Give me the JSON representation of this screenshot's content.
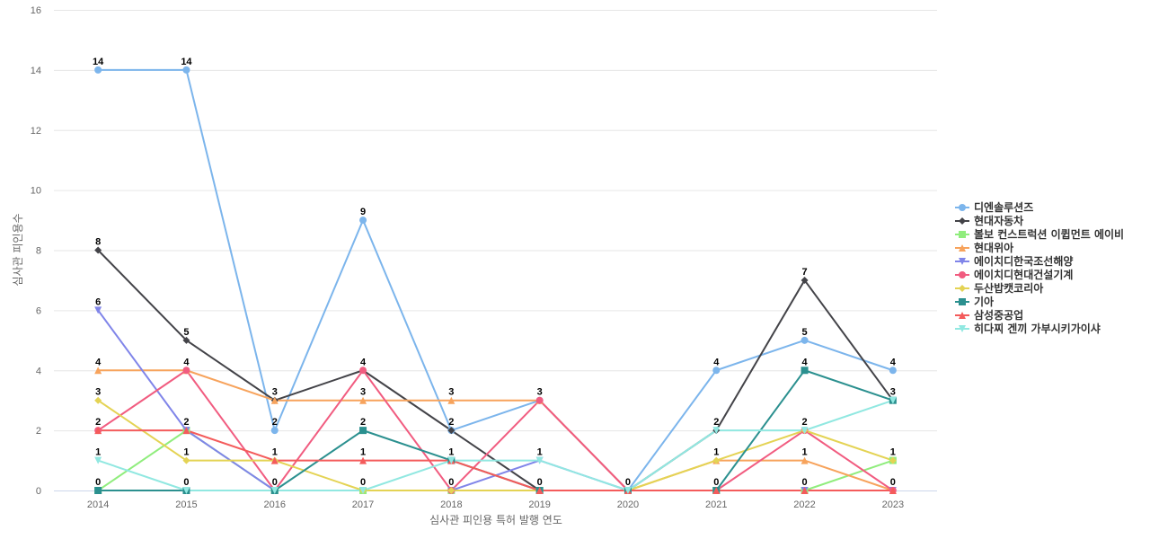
{
  "chart_data": {
    "type": "line",
    "title": "",
    "xlabel": "심사관 피인용 특허 발행 연도",
    "ylabel": "심사관 피인용수",
    "ylim": [
      0,
      16
    ],
    "yticks": [
      0,
      2,
      4,
      6,
      8,
      10,
      12,
      14,
      16
    ],
    "categories": [
      "2014",
      "2015",
      "2016",
      "2017",
      "2018",
      "2019",
      "2020",
      "2021",
      "2022",
      "2023"
    ],
    "legend_position": "right",
    "series": [
      {
        "name": "디엔솔루션즈",
        "color": "#7cb5ec",
        "marker": "circle",
        "values": [
          14,
          14,
          2,
          9,
          2,
          3,
          0,
          4,
          5,
          4
        ]
      },
      {
        "name": "현대자동차",
        "color": "#434348",
        "marker": "diamond",
        "values": [
          8,
          5,
          3,
          4,
          2,
          0,
          0,
          2,
          7,
          3
        ]
      },
      {
        "name": "볼보 컨스트럭션 이큅먼트 에이비",
        "color": "#90ed7d",
        "marker": "square",
        "values": [
          0,
          2,
          0,
          0,
          0,
          0,
          0,
          0,
          0,
          1
        ]
      },
      {
        "name": "현대위아",
        "color": "#f7a35c",
        "marker": "triangle",
        "values": [
          4,
          4,
          3,
          3,
          3,
          3,
          0,
          1,
          1,
          0
        ]
      },
      {
        "name": "에이치디한국조선해양",
        "color": "#8085e9",
        "marker": "triangle-down",
        "values": [
          6,
          2,
          0,
          0,
          0,
          1,
          0,
          0,
          0,
          0
        ]
      },
      {
        "name": "에이치디현대건설기계",
        "color": "#f15c80",
        "marker": "circle",
        "values": [
          2,
          4,
          0,
          4,
          0,
          3,
          0,
          0,
          2,
          0
        ]
      },
      {
        "name": "두산밥캣코리아",
        "color": "#e4d354",
        "marker": "diamond",
        "values": [
          3,
          1,
          1,
          0,
          0,
          0,
          0,
          1,
          2,
          1
        ]
      },
      {
        "name": "기아",
        "color": "#2b908f",
        "marker": "square",
        "values": [
          0,
          0,
          0,
          2,
          1,
          0,
          0,
          0,
          4,
          3
        ]
      },
      {
        "name": "삼성중공업",
        "color": "#f45b5b",
        "marker": "triangle",
        "values": [
          2,
          2,
          1,
          1,
          1,
          0,
          0,
          0,
          0,
          0
        ]
      },
      {
        "name": "히다찌 겐끼 가부시키가이샤",
        "color": "#91e8e1",
        "marker": "triangle-down",
        "values": [
          1,
          0,
          0,
          0,
          1,
          1,
          0,
          2,
          2,
          3
        ]
      }
    ],
    "data_labels": [
      {
        "x": "2014",
        "value": 14
      },
      {
        "x": "2014",
        "value": 8
      },
      {
        "x": "2014",
        "value": 6
      },
      {
        "x": "2014",
        "value": 4
      },
      {
        "x": "2014",
        "value": 3
      },
      {
        "x": "2014",
        "value": 2
      },
      {
        "x": "2014",
        "value": 1
      },
      {
        "x": "2014",
        "value": 0
      },
      {
        "x": "2015",
        "value": 14
      },
      {
        "x": "2015",
        "value": 5
      },
      {
        "x": "2015",
        "value": 4
      },
      {
        "x": "2015",
        "value": 2
      },
      {
        "x": "2015",
        "value": 1
      },
      {
        "x": "2015",
        "value": 0
      },
      {
        "x": "2016",
        "value": 3
      },
      {
        "x": "2016",
        "value": 2
      },
      {
        "x": "2016",
        "value": 1
      },
      {
        "x": "2016",
        "value": 0
      },
      {
        "x": "2017",
        "value": 9
      },
      {
        "x": "2017",
        "value": 4
      },
      {
        "x": "2017",
        "value": 3
      },
      {
        "x": "2017",
        "value": 2
      },
      {
        "x": "2017",
        "value": 1
      },
      {
        "x": "2017",
        "value": 0
      },
      {
        "x": "2018",
        "value": 3
      },
      {
        "x": "2018",
        "value": 2
      },
      {
        "x": "2018",
        "value": 1
      },
      {
        "x": "2018",
        "value": 0
      },
      {
        "x": "2019",
        "value": 3
      },
      {
        "x": "2019",
        "value": 1
      },
      {
        "x": "2019",
        "value": 0
      },
      {
        "x": "2020",
        "value": 0
      },
      {
        "x": "2021",
        "value": 4
      },
      {
        "x": "2021",
        "value": 2
      },
      {
        "x": "2021",
        "value": 1
      },
      {
        "x": "2021",
        "value": 0
      },
      {
        "x": "2022",
        "value": 7
      },
      {
        "x": "2022",
        "value": 5
      },
      {
        "x": "2022",
        "value": 4
      },
      {
        "x": "2022",
        "value": 2
      },
      {
        "x": "2022",
        "value": 1
      },
      {
        "x": "2022",
        "value": 0
      },
      {
        "x": "2023",
        "value": 4
      },
      {
        "x": "2023",
        "value": 3
      },
      {
        "x": "2023",
        "value": 1
      },
      {
        "x": "2023",
        "value": 0
      }
    ]
  }
}
